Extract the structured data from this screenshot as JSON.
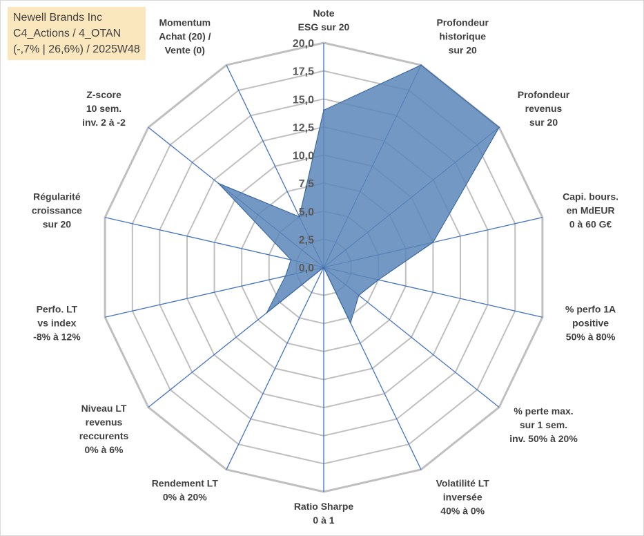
{
  "info": {
    "line1": "Newell Brands Inc",
    "line2": "C4_Actions / 4_OTAN",
    "line3": "(-,7% | 26,6%) / 2025W48"
  },
  "colors": {
    "fill": "#5b86b8",
    "stroke": "#3d6aa1",
    "grid": "#bfbfbf",
    "axis": "#4472c4",
    "info_bg": "#fbe7bd"
  },
  "chart_data": {
    "type": "radar",
    "title": "",
    "rmax": 20,
    "ticks": [
      "0,0",
      "2,5",
      "5,0",
      "7,5",
      "10,0",
      "12,5",
      "15,0",
      "17,5",
      "20,0"
    ],
    "tick_values": [
      0,
      2.5,
      5,
      7.5,
      10,
      12.5,
      15,
      17.5,
      20
    ],
    "categories": [
      [
        "Note",
        "ESG sur 20"
      ],
      [
        "Profondeur",
        "historique",
        "sur 20"
      ],
      [
        "Profondeur",
        "revenus",
        "sur 20"
      ],
      [
        "Capi. bours.",
        "en MdEUR",
        "0 à 60 G€"
      ],
      [
        "% perfo 1A",
        "positive",
        "50% à 80%"
      ],
      [
        "% perte max.",
        "sur 1 sem.",
        "inv. 50% à 20%"
      ],
      [
        "Volatilité LT",
        "inversée",
        "40% à 0%"
      ],
      [
        "Ratio Sharpe",
        "0 à 1"
      ],
      [
        "Rendement LT",
        "0% à 20%"
      ],
      [
        "Niveau LT",
        "revenus",
        "reccurents",
        "0% à 6%"
      ],
      [
        "Perfo. LT",
        "vs index",
        "-8% à 12%"
      ],
      [
        "Régularité",
        "croissance",
        "sur 20"
      ],
      [
        "Z-score",
        "10 sem.",
        "inv. 2 à -2"
      ],
      [
        "Momentum",
        "Achat (20) /",
        "Vente (0)"
      ]
    ],
    "values": [
      14,
      20,
      20,
      10,
      5,
      4,
      5.5,
      0,
      0,
      6.5,
      3.5,
      3,
      12,
      5
    ],
    "grid": true,
    "legend": "none"
  }
}
